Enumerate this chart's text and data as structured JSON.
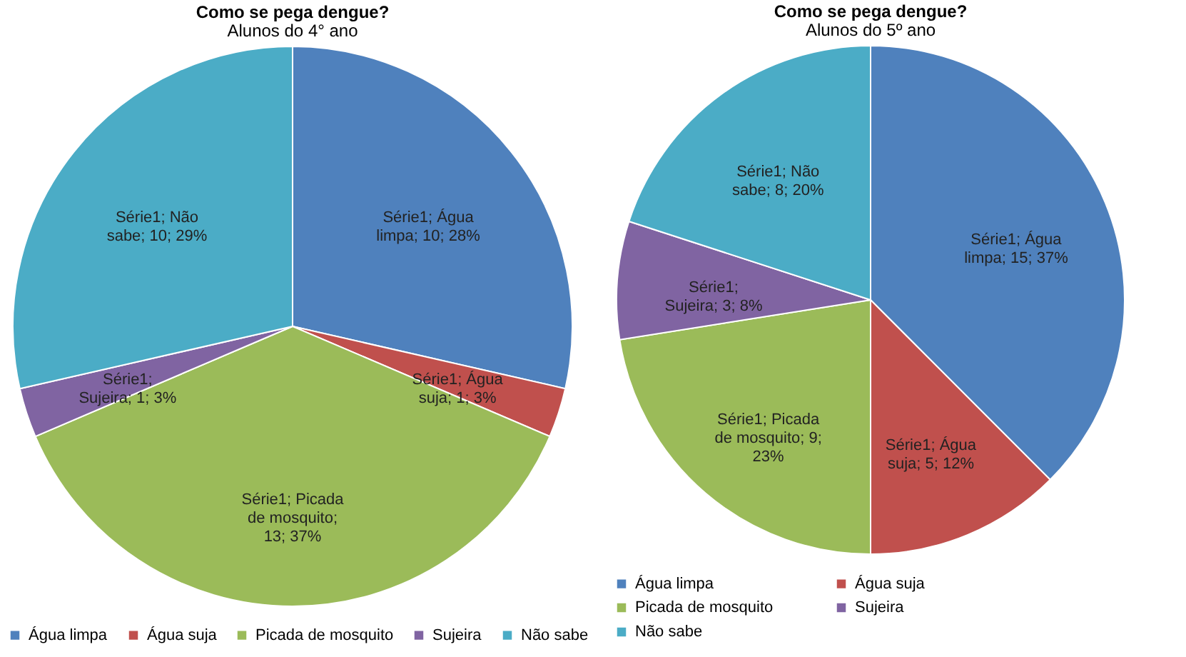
{
  "chart_data": [
    {
      "type": "pie",
      "title": "Como se pega dengue?",
      "subtitle": "Alunos do 4° ano",
      "categories": [
        "Água limpa",
        "Água suja",
        "Picada de mosquito",
        "Sujeira",
        "Não sabe"
      ],
      "values": [
        10,
        1,
        13,
        1,
        10
      ],
      "colors": [
        "#4f81bd",
        "#c0504d",
        "#9bbb59",
        "#8064a2",
        "#4bacc6"
      ],
      "value_labels": [
        "Série1; Água limpa; 10; 28%",
        "Série1; Água suja; 1; 3%",
        "Série1; Picada de mosquito; 13; 37%",
        "Série1; Sujeira; 1; 3%",
        "Série1; Não sabe; 10; 29%"
      ],
      "legend": "bottom"
    },
    {
      "type": "pie",
      "title": "Como se pega dengue?",
      "subtitle": "Alunos do 5º ano",
      "categories": [
        "Água limpa",
        "Água suja",
        "Picada de mosquito",
        "Sujeira",
        "Não sabe"
      ],
      "values": [
        15,
        5,
        9,
        3,
        8
      ],
      "colors": [
        "#4f81bd",
        "#c0504d",
        "#9bbb59",
        "#8064a2",
        "#4bacc6"
      ],
      "value_labels": [
        "Série1; Água limpa; 15; 37%",
        "Série1; Água suja; 5; 12%",
        "Série1; Picada de mosquito; 9; 23%",
        "Série1; Sujeira; 3; 8%",
        "Série1; Não sabe; 8; 20%"
      ],
      "legend": "bottom"
    }
  ]
}
